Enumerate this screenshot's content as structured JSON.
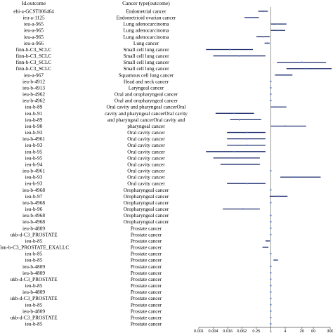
{
  "chart_data": {
    "type": "forest",
    "headers": {
      "id": "Id.outcome",
      "cancer": "Cancer type(outcome)"
    },
    "x_scale": "log10",
    "x_ticks": [
      "0.001",
      "0.004",
      "0.016",
      "0.062",
      "0.25",
      "1",
      "4",
      "20",
      "60",
      "300"
    ],
    "x_tick_values": [
      0.001,
      0.004,
      0.016,
      0.062,
      0.25,
      1,
      4,
      20,
      60,
      300
    ],
    "xlim": [
      0.001,
      300
    ],
    "reference_line": 1,
    "line_color": "#1f2d6b",
    "point_color": "#4a6fc4",
    "rows": [
      {
        "id": "ebi-a-GCST006464",
        "cancer": "Endometrial cancer",
        "or": 0.5,
        "lo": 0.3,
        "hi": 0.75
      },
      {
        "id": "ieu-a-1125",
        "cancer": "Endometrioid ovarian cancer",
        "or": 0.15,
        "lo": 0.08,
        "hi": 0.32
      },
      {
        "id": "ieu-a-965",
        "cancer": "Lung adenocarcinoma",
        "or": 1.9,
        "lo": 1.0,
        "hi": 4.5
      },
      {
        "id": "ieu-a-965",
        "cancer": "Lung adenocarcinoma",
        "or": 2.0,
        "lo": 1.0,
        "hi": 4.0
      },
      {
        "id": "ieu-a-965",
        "cancer": "Lung adenocarcinoma",
        "or": 0.5,
        "lo": 0.25,
        "hi": 0.9
      },
      {
        "id": "ieu-a-966",
        "cancer": "Lung cancer",
        "or": 0.7,
        "lo": 0.55,
        "hi": 0.9
      },
      {
        "id": "finn-b-C3_SCLC",
        "cancer": "Small cell lung cancer",
        "or": 0.02,
        "lo": 0.002,
        "hi": 0.18
      },
      {
        "id": "finn-b-C3_SCLC",
        "cancer": "Small cell lung cancer",
        "or": 0.05,
        "lo": 0.004,
        "hi": 0.6
      },
      {
        "id": "finn-b-C3_SCLC",
        "cancer": "Small cell lung cancer",
        "or": 20,
        "lo": 1.8,
        "hi": 200
      },
      {
        "id": "finn-b-C3_SCLC",
        "cancer": "Small cell lung cancer",
        "or": 30,
        "lo": 4.5,
        "hi": 400
      },
      {
        "id": "ieu-a-967",
        "cancer": "Squamous cell lung cancer",
        "or": 3.5,
        "lo": 1.5,
        "hi": 8
      },
      {
        "id": "ieu-b-4912",
        "cancer": "Head and neck cancer",
        "or": 1.0,
        "lo": 0.97,
        "hi": 1.03
      },
      {
        "id": "ieu-b-4913",
        "cancer": "Laryngeal cancer",
        "or": 1.0,
        "lo": 0.97,
        "hi": 1.03
      },
      {
        "id": "ieu-b-4962",
        "cancer": "Oral and oropharyngeal cancer",
        "or": 1.0,
        "lo": 0.97,
        "hi": 1.03
      },
      {
        "id": "ieu-b-4962",
        "cancer": "Oral and oropharyngeal cancer",
        "or": 1.0,
        "lo": 0.97,
        "hi": 1.03
      },
      {
        "id": "ieu-b-89",
        "cancer": "Oral cavity and pharyngeal cancerOral",
        "or": 1.5,
        "lo": 1.0,
        "hi": 4.5
      },
      {
        "id": "ieu-b-91",
        "cancer": "cavity and pharyngeal cancerOral cavity",
        "or": 0.03,
        "lo": 0.005,
        "hi": 0.2
      },
      {
        "id": "ieu-b-89",
        "cancer": "and pharyngeal cancerOral cavity and",
        "or": 0.05,
        "lo": 0.02,
        "hi": 0.4
      },
      {
        "id": "ieu-b-90",
        "cancer": "pharyngeal cancer",
        "or": 4,
        "lo": 1.0,
        "hi": 30
      },
      {
        "id": "ieu-b-93",
        "cancer": "Oral cavity cancer",
        "or": 0.1,
        "lo": 0.015,
        "hi": 0.6
      },
      {
        "id": "ieu-b-4961",
        "cancer": "Oral cavity cancer",
        "or": 0.1,
        "lo": 0.015,
        "hi": 0.6
      },
      {
        "id": "ieu-b-93",
        "cancer": "Oral cavity cancer",
        "or": 0.1,
        "lo": 0.015,
        "hi": 0.6
      },
      {
        "id": "ieu-b-95",
        "cancer": "Oral cavity cancer",
        "or": 0.03,
        "lo": 0.002,
        "hi": 0.6
      },
      {
        "id": "ieu-b-95",
        "cancer": "Oral cavity cancer",
        "or": 0.04,
        "lo": 0.004,
        "hi": 0.35
      },
      {
        "id": "ieu-b-94",
        "cancer": "Oral cavity cancer",
        "or": 0.05,
        "lo": 0.008,
        "hi": 0.35
      },
      {
        "id": "ieu-b-4961",
        "cancer": "Oral cavity cancer",
        "or": 1.0,
        "lo": 0.97,
        "hi": 1.03
      },
      {
        "id": "ieu-b-93",
        "cancer": "Oral cavity cancer",
        "or": 10,
        "lo": 2.5,
        "hi": 120
      },
      {
        "id": "ieu-b-93",
        "cancer": "Oral cavity cancer",
        "or": 0.1,
        "lo": 0.015,
        "hi": 0.6
      },
      {
        "id": "ieu-b-4968",
        "cancer": "Oropharyngeal cancer",
        "or": 1.0,
        "lo": 0.97,
        "hi": 1.03
      },
      {
        "id": "ieu-b-97",
        "cancer": "Oropharyngeal cancer",
        "or": 2,
        "lo": 0.9,
        "hi": 5
      },
      {
        "id": "ieu-b-4968",
        "cancer": "Oropharyngeal cancer",
        "or": 1.0,
        "lo": 0.97,
        "hi": 1.03
      },
      {
        "id": "ieu-b-96",
        "cancer": "Oropharyngeal cancer",
        "or": 0.07,
        "lo": 0.01,
        "hi": 0.35
      },
      {
        "id": "ieu-b-4968",
        "cancer": "Oropharyngeal cancer",
        "or": 1.0,
        "lo": 0.97,
        "hi": 1.03
      },
      {
        "id": "ieu-b-4968",
        "cancer": "Oropharyngeal cancer",
        "or": 1.0,
        "lo": 0.97,
        "hi": 1.03
      },
      {
        "id": "ieu-b-4809",
        "cancer": "Prostate cancer",
        "or": 1.0,
        "lo": 0.97,
        "hi": 1.03
      },
      {
        "id": "ukb-d-C3_PROSTATE",
        "cancer": "Prostate cancer",
        "or": 1.0,
        "lo": 0.97,
        "hi": 1.03
      },
      {
        "id": "ieu-b-85",
        "cancer": "Prostate cancer",
        "or": 0.75,
        "lo": 0.6,
        "hi": 0.92
      },
      {
        "id": "finn-b-C3_PROSTATE_EXALLC",
        "cancer": "Prostate cancer",
        "or": 0.6,
        "lo": 0.45,
        "hi": 0.8
      },
      {
        "id": "ieu-b-85",
        "cancer": "Prostate cancer",
        "or": 1.0,
        "lo": 0.97,
        "hi": 1.03
      },
      {
        "id": "ieu-b-85",
        "cancer": "Prostate cancer",
        "or": 1.6,
        "lo": 1.3,
        "hi": 2.0
      },
      {
        "id": "ieu-b-4809",
        "cancer": "Prostate cancer",
        "or": 1.0,
        "lo": 0.97,
        "hi": 1.03
      },
      {
        "id": "ieu-b-4809",
        "cancer": "Prostate cancer",
        "or": 1.0,
        "lo": 0.97,
        "hi": 1.03
      },
      {
        "id": "ukb-d-C3_PROSTATE",
        "cancer": "Prostate cancer",
        "or": 1.0,
        "lo": 0.97,
        "hi": 1.03
      },
      {
        "id": "ieu-b-85",
        "cancer": "Prostate cancer",
        "or": 1.0,
        "lo": 0.97,
        "hi": 1.03
      },
      {
        "id": "ieu-b-4809",
        "cancer": "Prostate cancer",
        "or": 1.0,
        "lo": 0.97,
        "hi": 1.03
      },
      {
        "id": "ukb-d-C3_PROSTATE",
        "cancer": "Prostate cancer",
        "or": 1.0,
        "lo": 0.97,
        "hi": 1.03
      },
      {
        "id": "ieu-b-85",
        "cancer": "Prostate cancer",
        "or": 1.0,
        "lo": 0.97,
        "hi": 1.03
      },
      {
        "id": "ieu-b-4809",
        "cancer": "Prostate cancer",
        "or": 1.0,
        "lo": 0.97,
        "hi": 1.03
      },
      {
        "id": "ukb-d-C3_PROSTATE",
        "cancer": "Prostate cancer",
        "or": 1.0,
        "lo": 0.97,
        "hi": 1.03
      },
      {
        "id": "ieu-b-85",
        "cancer": "Prostate cancer",
        "or": 1.0,
        "lo": 0.97,
        "hi": 1.03
      }
    ]
  }
}
